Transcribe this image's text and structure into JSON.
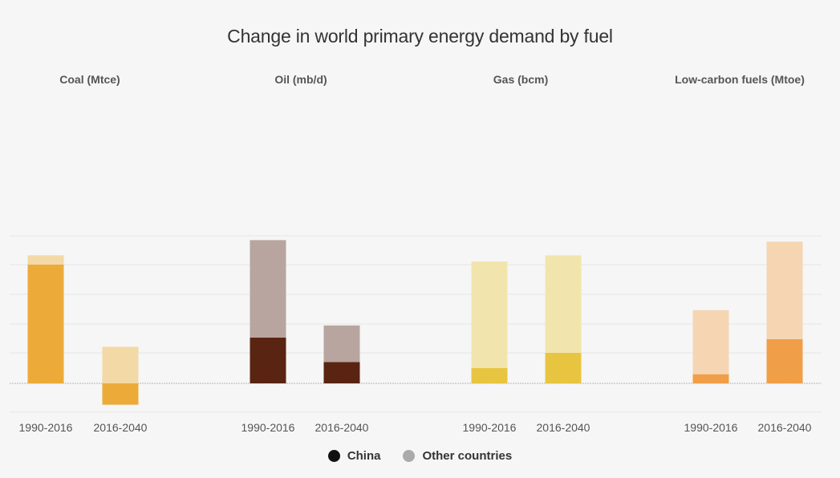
{
  "chart_data": {
    "type": "bar",
    "title": "Change in world primary energy demand by fuel",
    "stacked": true,
    "ylim": [
      -0.7,
      4.9
    ],
    "grid": true,
    "legend_position": "bottom-center",
    "legend": [
      {
        "name": "China",
        "color": "#111111"
      },
      {
        "name": "Other countries",
        "color": "#aaaaaa"
      }
    ],
    "panels": [
      {
        "title": "Coal (Mtce)",
        "categories": [
          "1990-2016",
          "2016-2040"
        ],
        "series": [
          {
            "name": "China",
            "values": [
              3.9,
              -0.7
            ],
            "color": "#ecab38"
          },
          {
            "name": "Other countries",
            "values": [
              0.3,
              1.2
            ],
            "color": "#f3d9a5"
          }
        ]
      },
      {
        "title": "Oil (mb/d)",
        "categories": [
          "1990-2016",
          "2016-2040"
        ],
        "series": [
          {
            "name": "China",
            "values": [
              1.5,
              0.7
            ],
            "color": "#5a2412"
          },
          {
            "name": "Other countries",
            "values": [
              3.2,
              1.2
            ],
            "color": "#b8a59f"
          }
        ]
      },
      {
        "title": "Gas (bcm)",
        "categories": [
          "1990-2016",
          "2016-2040"
        ],
        "series": [
          {
            "name": "China",
            "values": [
              0.5,
              1.0
            ],
            "color": "#e8c540"
          },
          {
            "name": "Other countries",
            "values": [
              3.5,
              3.2
            ],
            "color": "#f1e5ad"
          }
        ]
      },
      {
        "title": "Low-carbon fuels (Mtoe)",
        "categories": [
          "1990-2016",
          "2016-2040"
        ],
        "series": [
          {
            "name": "China",
            "values": [
              0.3,
              1.45
            ],
            "color": "#f09e48"
          },
          {
            "name": "Other countries",
            "values": [
              2.1,
              3.2
            ],
            "color": "#f6d5b3"
          }
        ]
      }
    ]
  }
}
